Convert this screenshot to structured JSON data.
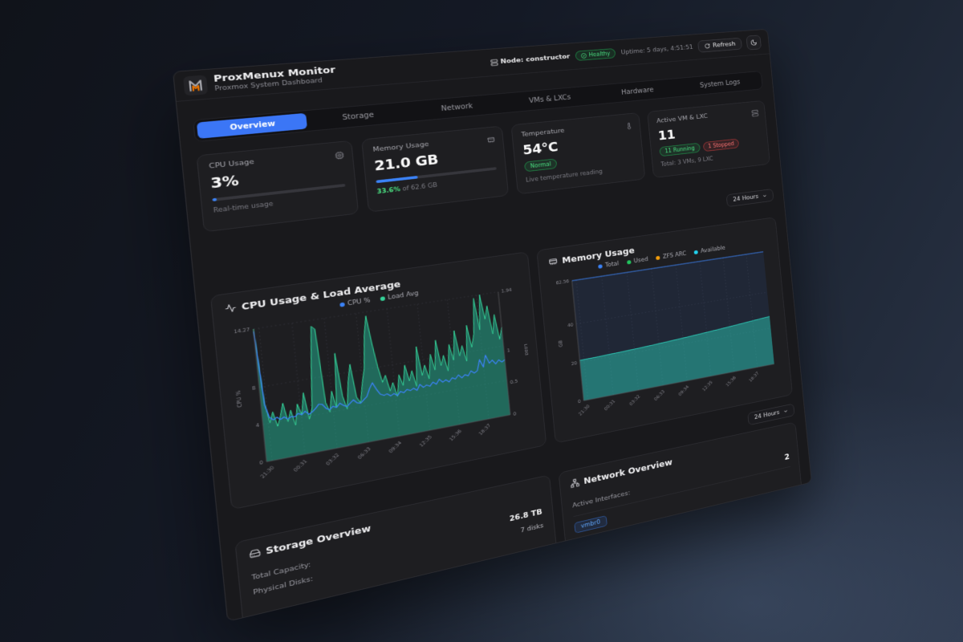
{
  "topbar": {
    "node_label": "Node: constructor",
    "health_badge": "Healthy",
    "uptime": "Uptime: 5 days, 4:51:51",
    "refresh_label": "Refresh"
  },
  "header": {
    "title": "ProxMenux Monitor",
    "subtitle": "Proxmox System Dashboard"
  },
  "tabs": [
    {
      "label": "Overview",
      "active": true
    },
    {
      "label": "Storage",
      "active": false
    },
    {
      "label": "Network",
      "active": false
    },
    {
      "label": "VMs & LXCs",
      "active": false
    },
    {
      "label": "Hardware",
      "active": false
    },
    {
      "label": "System Logs",
      "active": false
    }
  ],
  "stat_cards": {
    "cpu": {
      "title": "CPU Usage",
      "value": "3%",
      "progress_pct": 3,
      "caption": "Real-time usage"
    },
    "memory": {
      "title": "Memory Usage",
      "value": "21.0 GB",
      "progress_pct": 33.6,
      "caption_highlight": "33.6%",
      "caption_rest": " of 62.6 GB"
    },
    "temperature": {
      "title": "Temperature",
      "value": "54°C",
      "badge": "Normal",
      "caption": "Live temperature reading"
    },
    "vms": {
      "title": "Active VM & LXC",
      "value": "11",
      "badge_running": "11 Running",
      "badge_stopped": "1 Stopped",
      "caption": "Total: 3 VMs, 9 LXC"
    }
  },
  "range_selector": {
    "label": "24 Hours"
  },
  "range_selector2": {
    "label": "24 Hours"
  },
  "chart_data": [
    {
      "type": "line",
      "title": "CPU Usage & Load Average",
      "x_ticks": [
        "21:30",
        "00:31",
        "03:32",
        "06:33",
        "09:34",
        "12:35",
        "15:36",
        "18:37"
      ],
      "left_axis": {
        "label": "CPU %",
        "ticks": [
          0,
          4,
          8
        ],
        "max": 14.27,
        "max_label": "14.27"
      },
      "right_axis": {
        "label": "Load",
        "ticks": [
          0,
          0.5,
          1
        ],
        "max": 1.94,
        "max_label": "1.94"
      },
      "legend": [
        {
          "label": "CPU %",
          "color": "#3b82f6"
        },
        {
          "label": "Load Avg",
          "color": "#34d399"
        }
      ],
      "series": [
        {
          "name": "Load Avg",
          "axis": "right",
          "color": "#34d399",
          "fill": "rgba(36,180,150,0.5)",
          "values": [
            1.94,
            0.85,
            0.55,
            0.7,
            0.48,
            0.62,
            0.8,
            0.52,
            0.68,
            0.45,
            0.75,
            0.58,
            0.9,
            0.5,
            0.65,
            1.3,
            1.85,
            1.8,
            0.7,
            0.55,
            0.85,
            0.6,
            1.4,
            0.75,
            0.55,
            0.95,
            1.2,
            0.7,
            0.6,
            0.88,
            1.1,
            1.6,
            1.88,
            1.45,
            1.1,
            0.85,
            0.95,
            0.7,
            0.82,
            0.6,
            0.92,
            0.75,
            1.05,
            0.8,
            0.95,
            0.7,
            1.3,
            0.85,
            1.0,
            0.78,
            1.15,
            0.9,
            1.35,
            0.95,
            1.1,
            0.85,
            1.25,
            1.0,
            1.45,
            1.05,
            1.2,
            0.95,
            1.5,
            1.15,
            1.35,
            1.9,
            1.4,
            1.94,
            1.55,
            1.75,
            1.3,
            1.6,
            1.2,
            1.38
          ]
        },
        {
          "name": "CPU %",
          "axis": "left",
          "color": "#3b82f6",
          "fill": null,
          "values": [
            14,
            6,
            4.6,
            4.3,
            4.5,
            4.2,
            4.4,
            4.1,
            4.3,
            4.2,
            4.5,
            4.3,
            4.6,
            4.2,
            4.4,
            4.7,
            5.1,
            5.0,
            4.5,
            4.3,
            4.6,
            4.4,
            4.8,
            4.5,
            4.3,
            4.6,
            4.9,
            4.5,
            4.4,
            4.7,
            5.0,
            5.8,
            6.4,
            5.6,
            5.0,
            4.8,
            4.9,
            4.6,
            4.8,
            4.5,
            4.9,
            4.7,
            5.0,
            4.8,
            5.0,
            4.7,
            5.3,
            4.9,
            5.1,
            4.9,
            5.3,
            5.0,
            5.5,
            5.1,
            5.3,
            5.0,
            5.4,
            5.2,
            5.6,
            5.2,
            5.5,
            5.3,
            5.8,
            5.5,
            5.7,
            6.9,
            6.0,
            7.3,
            6.3,
            6.6,
            6.1,
            6.5,
            6.2,
            6.4
          ]
        }
      ]
    },
    {
      "type": "area",
      "title": "Memory Usage",
      "x_ticks": [
        "21:30",
        "00:31",
        "03:32",
        "06:33",
        "09:34",
        "12:35",
        "15:36",
        "18:37"
      ],
      "left_axis": {
        "label": "GB",
        "ticks": [
          0,
          20,
          40
        ],
        "max": 62.56,
        "max_label": "62.56"
      },
      "legend": [
        {
          "label": "Total",
          "color": "#3b82f6"
        },
        {
          "label": "Used",
          "color": "#22c55e"
        },
        {
          "label": "ZFS ARC",
          "color": "#f59e0b"
        },
        {
          "label": "Available",
          "color": "#22d3ee"
        }
      ],
      "series": [
        {
          "name": "Total",
          "axis": "left",
          "color": "#3b82f6",
          "fill": "rgba(59,130,246,0.10)",
          "values": [
            62.56,
            62.56
          ]
        },
        {
          "name": "Available",
          "axis": "left",
          "color": "#2dd4bf",
          "fill": "rgba(45,212,191,0.45)",
          "values": [
            21,
            21.2,
            21.5,
            21.8,
            22.2,
            22.7,
            23.2,
            23.8,
            24.4,
            25.1,
            25.8,
            26.5
          ]
        }
      ]
    }
  ],
  "storage": {
    "title": "Storage Overview",
    "rows": [
      {
        "label": "Total Capacity:",
        "value": "26.8 TB"
      },
      {
        "label": "Physical Disks:",
        "value": "7 disks"
      }
    ]
  },
  "network": {
    "title": "Network Overview",
    "rows": [
      {
        "label": "Active Interfaces:",
        "value": "2"
      }
    ],
    "interface_badge": "vmbr0"
  },
  "colors": {
    "accent_blue": "#3b82f6",
    "status_green": "#4ade80",
    "status_red": "#f87171",
    "series_green": "#34d399",
    "series_teal": "#2dd4bf",
    "series_orange": "#f59e0b",
    "series_cyan": "#22d3ee",
    "logo_orange": "#e57000"
  }
}
